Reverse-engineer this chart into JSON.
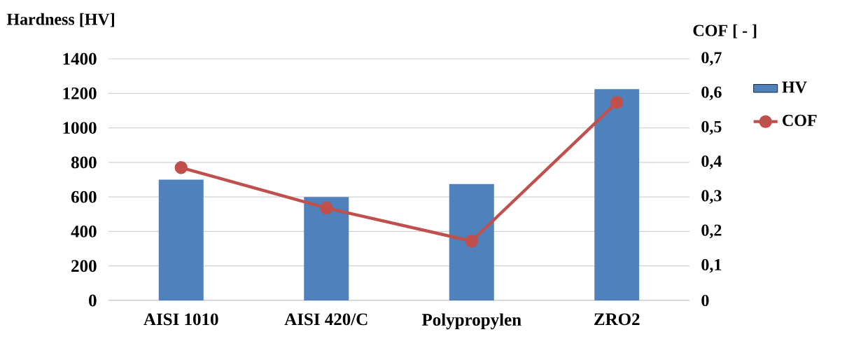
{
  "chart_data": {
    "type": "bar",
    "ylabel": "Hardness [HV]",
    "y2label": "COF [ - ]",
    "categories": [
      "AISI 1010",
      "AISI 420/C",
      "Polypropylen",
      "ZRO2"
    ],
    "series": [
      {
        "name": "HV",
        "color": "#4f81bd",
        "values": [
          700,
          600,
          675,
          1225
        ]
      },
      {
        "name": "COF",
        "type": "line",
        "axis": "y2",
        "color": "#c0504d",
        "marker": "circle",
        "values": [
          0.385,
          0.268,
          0.172,
          0.574
        ]
      }
    ],
    "ylim": [
      0,
      1400
    ],
    "yticks": [
      0,
      200,
      400,
      600,
      800,
      1000,
      1200,
      1400
    ],
    "y2lim": [
      0,
      0.7
    ],
    "y2ticks": [
      {
        "value": 0,
        "label": "0"
      },
      {
        "value": 0.1,
        "label": "0,1"
      },
      {
        "value": 0.2,
        "label": "0,2"
      },
      {
        "value": 0.3,
        "label": "0,3"
      },
      {
        "value": 0.4,
        "label": "0,4"
      },
      {
        "value": 0.5,
        "label": "0,5"
      },
      {
        "value": 0.6,
        "label": "0,6"
      },
      {
        "value": 0.7,
        "label": "0,7"
      }
    ],
    "grid": "y",
    "legend": "right"
  }
}
